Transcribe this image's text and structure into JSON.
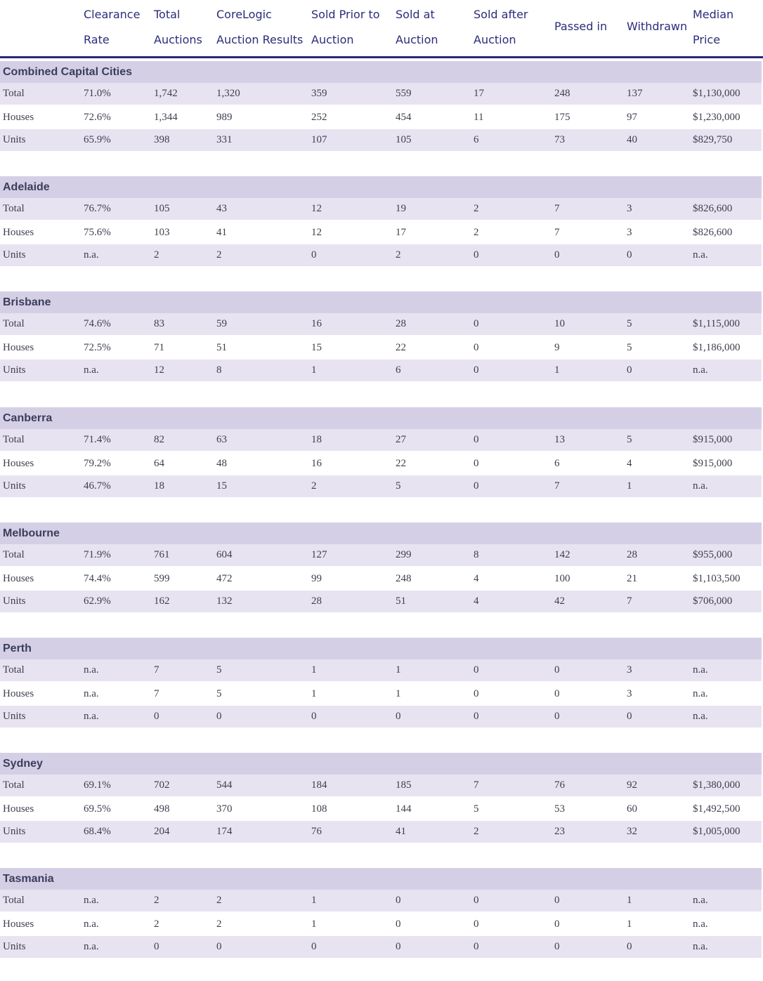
{
  "header": [
    {
      "line1": "Clearance",
      "line2": "Rate"
    },
    {
      "line1": "Total",
      "line2": "Auctions"
    },
    {
      "line1": "CoreLogic",
      "line2": "Auction Results"
    },
    {
      "line1": "Sold Prior to",
      "line2": "Auction"
    },
    {
      "line1": "Sold at",
      "line2": "Auction"
    },
    {
      "line1": "Sold after",
      "line2": "Auction"
    },
    {
      "line1": "Passed in",
      "line2": ""
    },
    {
      "line1": "Withdrawn",
      "line2": ""
    },
    {
      "line1": "Median",
      "line2": "Price"
    }
  ],
  "sections": [
    {
      "name": "Combined Capital Cities",
      "rows": [
        {
          "label": "Total",
          "values": [
            "71.0%",
            "1,742",
            "1,320",
            "359",
            "559",
            "17",
            "248",
            "137",
            "$1,130,000"
          ]
        },
        {
          "label": "Houses",
          "values": [
            "72.6%",
            "1,344",
            "989",
            "252",
            "454",
            "11",
            "175",
            "97",
            "$1,230,000"
          ]
        },
        {
          "label": "Units",
          "values": [
            "65.9%",
            "398",
            "331",
            "107",
            "105",
            "6",
            "73",
            "40",
            "$829,750"
          ]
        }
      ]
    },
    {
      "name": "Adelaide",
      "rows": [
        {
          "label": "Total",
          "values": [
            "76.7%",
            "105",
            "43",
            "12",
            "19",
            "2",
            "7",
            "3",
            "$826,600"
          ]
        },
        {
          "label": "Houses",
          "values": [
            "75.6%",
            "103",
            "41",
            "12",
            "17",
            "2",
            "7",
            "3",
            "$826,600"
          ]
        },
        {
          "label": "Units",
          "values": [
            "n.a.",
            "2",
            "2",
            "0",
            "2",
            "0",
            "0",
            "0",
            "n.a."
          ]
        }
      ]
    },
    {
      "name": "Brisbane",
      "rows": [
        {
          "label": "Total",
          "values": [
            "74.6%",
            "83",
            "59",
            "16",
            "28",
            "0",
            "10",
            "5",
            "$1,115,000"
          ]
        },
        {
          "label": "Houses",
          "values": [
            "72.5%",
            "71",
            "51",
            "15",
            "22",
            "0",
            "9",
            "5",
            "$1,186,000"
          ]
        },
        {
          "label": "Units",
          "values": [
            "n.a.",
            "12",
            "8",
            "1",
            "6",
            "0",
            "1",
            "0",
            "n.a."
          ]
        }
      ]
    },
    {
      "name": "Canberra",
      "rows": [
        {
          "label": "Total",
          "values": [
            "71.4%",
            "82",
            "63",
            "18",
            "27",
            "0",
            "13",
            "5",
            "$915,000"
          ]
        },
        {
          "label": "Houses",
          "values": [
            "79.2%",
            "64",
            "48",
            "16",
            "22",
            "0",
            "6",
            "4",
            "$915,000"
          ]
        },
        {
          "label": "Units",
          "values": [
            "46.7%",
            "18",
            "15",
            "2",
            "5",
            "0",
            "7",
            "1",
            "n.a."
          ]
        }
      ]
    },
    {
      "name": "Melbourne",
      "rows": [
        {
          "label": "Total",
          "values": [
            "71.9%",
            "761",
            "604",
            "127",
            "299",
            "8",
            "142",
            "28",
            "$955,000"
          ]
        },
        {
          "label": "Houses",
          "values": [
            "74.4%",
            "599",
            "472",
            "99",
            "248",
            "4",
            "100",
            "21",
            "$1,103,500"
          ]
        },
        {
          "label": "Units",
          "values": [
            "62.9%",
            "162",
            "132",
            "28",
            "51",
            "4",
            "42",
            "7",
            "$706,000"
          ]
        }
      ]
    },
    {
      "name": "Perth",
      "rows": [
        {
          "label": "Total",
          "values": [
            "n.a.",
            "7",
            "5",
            "1",
            "1",
            "0",
            "0",
            "3",
            "n.a."
          ]
        },
        {
          "label": "Houses",
          "values": [
            "n.a.",
            "7",
            "5",
            "1",
            "1",
            "0",
            "0",
            "3",
            "n.a."
          ]
        },
        {
          "label": "Units",
          "values": [
            "n.a.",
            "0",
            "0",
            "0",
            "0",
            "0",
            "0",
            "0",
            "n.a."
          ]
        }
      ]
    },
    {
      "name": "Sydney",
      "rows": [
        {
          "label": "Total",
          "values": [
            "69.1%",
            "702",
            "544",
            "184",
            "185",
            "7",
            "76",
            "92",
            "$1,380,000"
          ]
        },
        {
          "label": "Houses",
          "values": [
            "69.5%",
            "498",
            "370",
            "108",
            "144",
            "5",
            "53",
            "60",
            "$1,492,500"
          ]
        },
        {
          "label": "Units",
          "values": [
            "68.4%",
            "204",
            "174",
            "76",
            "41",
            "2",
            "23",
            "32",
            "$1,005,000"
          ]
        }
      ]
    },
    {
      "name": "Tasmania",
      "rows": [
        {
          "label": "Total",
          "values": [
            "n.a.",
            "2",
            "2",
            "1",
            "0",
            "0",
            "0",
            "1",
            "n.a."
          ]
        },
        {
          "label": "Houses",
          "values": [
            "n.a.",
            "2",
            "2",
            "1",
            "0",
            "0",
            "0",
            "1",
            "n.a."
          ]
        },
        {
          "label": "Units",
          "values": [
            "n.a.",
            "0",
            "0",
            "0",
            "0",
            "0",
            "0",
            "0",
            "n.a."
          ]
        }
      ]
    }
  ]
}
